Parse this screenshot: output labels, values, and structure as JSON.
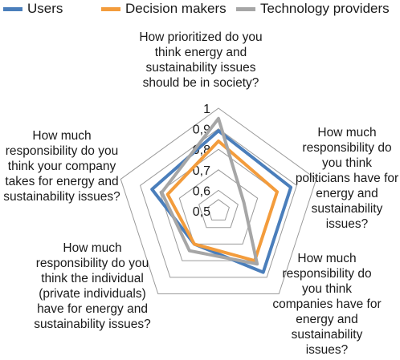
{
  "chart_data": {
    "type": "radar",
    "axes": [
      "How prioritized do you think energy and sustainability issues should be in society?",
      "How much responsibility do you think politicians have for energy and sustainability issues?",
      "How much responsibility do you think companies have for energy and sustainability issues?",
      "How much responsibility do you think the individual (private individuals) have for energy and sustainability issues?",
      "How much responsibility do you think your company takes for energy and sustainability issues?"
    ],
    "ticks": [
      "0,5",
      "0,6",
      "0,7",
      "0,8",
      "0,9",
      "1"
    ],
    "range": [
      0.5,
      1.0
    ],
    "series": [
      {
        "name": "Users",
        "color": "#4a7ebb",
        "values": [
          0.89,
          0.87,
          0.87,
          0.7,
          0.84
        ]
      },
      {
        "name": "Decision makers",
        "color": "#f39c3c",
        "values": [
          0.84,
          0.8,
          0.8,
          0.7,
          0.76
        ]
      },
      {
        "name": "Technology providers",
        "color": "#a6a6a6",
        "values": [
          0.95,
          0.63,
          0.82,
          0.74,
          0.79
        ]
      }
    ],
    "legend_position": "top"
  }
}
